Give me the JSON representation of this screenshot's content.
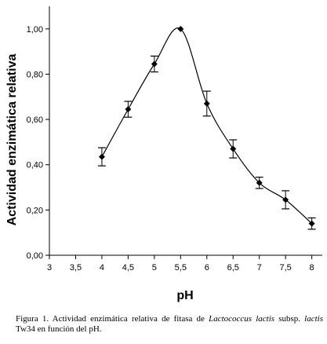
{
  "chart_data": {
    "type": "line",
    "xlabel": "pH",
    "ylabel": "Actividad enzimática relativa",
    "xlim": [
      3,
      8.2
    ],
    "ylim": [
      0,
      1.1
    ],
    "xticks": [
      3,
      3.5,
      4,
      4.5,
      5,
      5.5,
      6,
      6.5,
      7,
      7.5,
      8
    ],
    "xtick_labels": [
      "3",
      "3,5",
      "4",
      "4,5",
      "5",
      "5,5",
      "6",
      "6,5",
      "7",
      "7,5",
      "8"
    ],
    "yticks": [
      0,
      0.2,
      0.4,
      0.6,
      0.8,
      1.0
    ],
    "ytick_labels": [
      "0,00",
      "0,20",
      "0,40",
      "0,60",
      "0,80",
      "1,00"
    ],
    "grid": false,
    "series": [
      {
        "x": [
          4,
          4.5,
          5,
          5.5,
          6,
          6.5,
          7,
          7.5,
          8
        ],
        "y": [
          0.435,
          0.645,
          0.845,
          1.0,
          0.67,
          0.47,
          0.32,
          0.245,
          0.14
        ],
        "error": [
          0.04,
          0.035,
          0.035,
          0.0,
          0.055,
          0.04,
          0.025,
          0.04,
          0.025
        ],
        "marker": "diamond",
        "color": "#000000"
      }
    ]
  },
  "caption": {
    "prefix": "Figura 1. Actividad enzimática relativa de fitasa de ",
    "species": "Lactococcus lactis",
    "mid": " subsp. ",
    "subspecies": "lactis",
    "suffix": " Tw34 en función del pH."
  }
}
